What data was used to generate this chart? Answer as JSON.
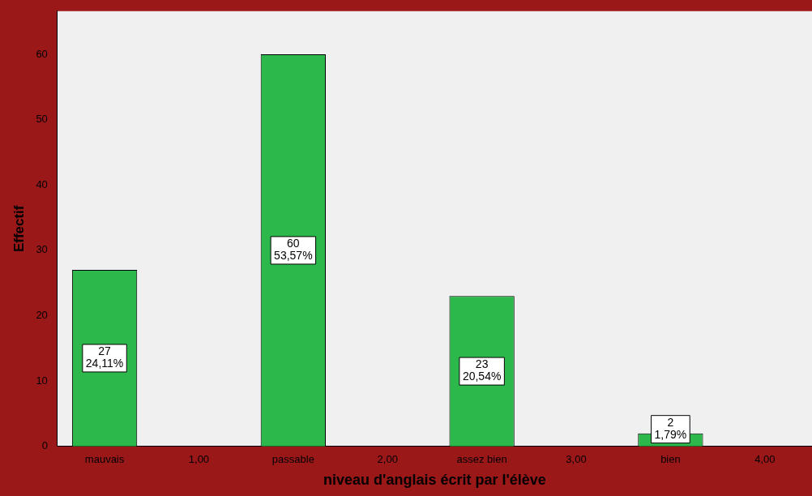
{
  "chart_data": {
    "type": "bar",
    "xlabel": "niveau d'anglais écrit par l'élève",
    "ylabel": "Effectif",
    "categories": [
      "mauvais",
      "1,00",
      "passable",
      "2,00",
      "assez bien",
      "3,00",
      "bien",
      "4,00"
    ],
    "values": [
      27,
      null,
      60,
      null,
      23,
      null,
      2,
      null
    ],
    "value_labels": [
      "27\n24,11%",
      null,
      "60\n53,57%",
      null,
      "23\n20,54%",
      null,
      "2\n1,79%",
      null
    ],
    "color": "#2db84b",
    "ylim": [
      0,
      66.6
    ],
    "yticks": [
      0,
      10,
      20,
      30,
      40,
      50,
      60
    ],
    "grid": false,
    "legend": false
  }
}
